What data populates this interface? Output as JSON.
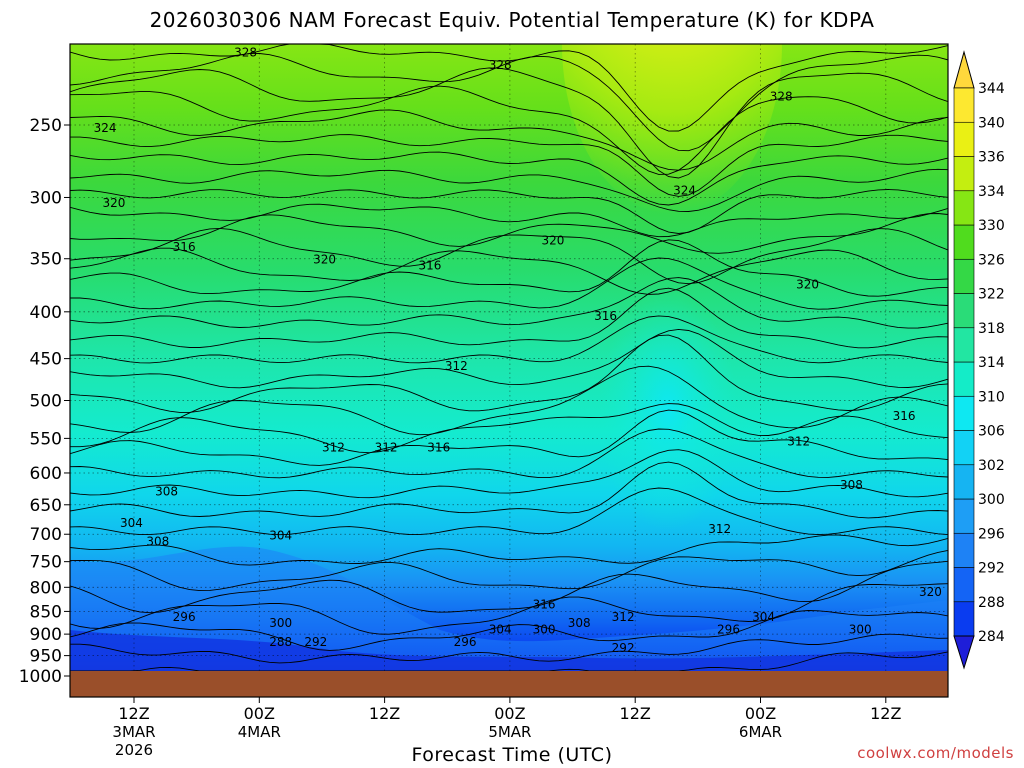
{
  "chart_data": {
    "type": "heatmap",
    "title": "2026030306 NAM Forecast Equiv. Potential Temperature (K) for KDPA",
    "xlabel": "Forecast Time (UTC)",
    "ylabel": "",
    "y_scale": "log-pressure",
    "y_ticks": [
      250,
      300,
      350,
      400,
      450,
      500,
      550,
      600,
      650,
      700,
      750,
      800,
      850,
      900,
      950,
      1000
    ],
    "x_ticks": [
      {
        "label": "12Z",
        "sub": [
          "3MAR",
          "2026"
        ]
      },
      {
        "label": "00Z",
        "sub": [
          "4MAR"
        ]
      },
      {
        "label": "12Z",
        "sub": []
      },
      {
        "label": "00Z",
        "sub": [
          "5MAR"
        ]
      },
      {
        "label": "12Z",
        "sub": []
      },
      {
        "label": "00Z",
        "sub": [
          "6MAR"
        ]
      },
      {
        "label": "12Z",
        "sub": []
      }
    ],
    "colorbar": {
      "levels": [
        284,
        288,
        292,
        296,
        300,
        302,
        306,
        310,
        314,
        318,
        322,
        326,
        330,
        334,
        336,
        340,
        344
      ],
      "colors": [
        "#1e1ed8",
        "#0a3cf0",
        "#1464f5",
        "#1e82f5",
        "#1e9ef5",
        "#16b4f2",
        "#12d2f5",
        "#0ee8f2",
        "#14ecc8",
        "#22e6a2",
        "#2adc78",
        "#34d846",
        "#50dc1e",
        "#86e614",
        "#c4ee10",
        "#eaf014",
        "#fde830",
        "#ffd83c"
      ]
    },
    "contour_labels": [
      {
        "text": "328",
        "x": 0.2,
        "y": 0.02
      },
      {
        "text": "328",
        "x": 0.49,
        "y": 0.04
      },
      {
        "text": "328",
        "x": 0.81,
        "y": 0.09
      },
      {
        "text": "324",
        "x": 0.04,
        "y": 0.14
      },
      {
        "text": "324",
        "x": 0.7,
        "y": 0.24
      },
      {
        "text": "320",
        "x": 0.05,
        "y": 0.26
      },
      {
        "text": "320",
        "x": 0.55,
        "y": 0.32
      },
      {
        "text": "320",
        "x": 0.29,
        "y": 0.35
      },
      {
        "text": "320",
        "x": 0.84,
        "y": 0.39
      },
      {
        "text": "316",
        "x": 0.13,
        "y": 0.33
      },
      {
        "text": "316",
        "x": 0.41,
        "y": 0.36
      },
      {
        "text": "316",
        "x": 0.61,
        "y": 0.44
      },
      {
        "text": "316",
        "x": 0.42,
        "y": 0.65
      },
      {
        "text": "316",
        "x": 0.95,
        "y": 0.6
      },
      {
        "text": "312",
        "x": 0.44,
        "y": 0.52
      },
      {
        "text": "312",
        "x": 0.3,
        "y": 0.65
      },
      {
        "text": "312",
        "x": 0.36,
        "y": 0.65
      },
      {
        "text": "312",
        "x": 0.83,
        "y": 0.64
      },
      {
        "text": "312",
        "x": 0.74,
        "y": 0.78
      },
      {
        "text": "312",
        "x": 0.63,
        "y": 0.92
      },
      {
        "text": "316",
        "x": 0.54,
        "y": 0.9
      },
      {
        "text": "308",
        "x": 0.11,
        "y": 0.72
      },
      {
        "text": "308",
        "x": 0.1,
        "y": 0.8
      },
      {
        "text": "308",
        "x": 0.89,
        "y": 0.71
      },
      {
        "text": "308",
        "x": 0.58,
        "y": 0.93
      },
      {
        "text": "304",
        "x": 0.07,
        "y": 0.77
      },
      {
        "text": "304",
        "x": 0.24,
        "y": 0.79
      },
      {
        "text": "304",
        "x": 0.49,
        "y": 0.94
      },
      {
        "text": "304",
        "x": 0.79,
        "y": 0.92
      },
      {
        "text": "300",
        "x": 0.24,
        "y": 0.93
      },
      {
        "text": "300",
        "x": 0.54,
        "y": 0.94
      },
      {
        "text": "300",
        "x": 0.9,
        "y": 0.94
      },
      {
        "text": "296",
        "x": 0.13,
        "y": 0.92
      },
      {
        "text": "296",
        "x": 0.45,
        "y": 0.96
      },
      {
        "text": "296",
        "x": 0.75,
        "y": 0.94
      },
      {
        "text": "292",
        "x": 0.28,
        "y": 0.96
      },
      {
        "text": "292",
        "x": 0.63,
        "y": 0.97
      },
      {
        "text": "288",
        "x": 0.24,
        "y": 0.96
      },
      {
        "text": "320",
        "x": 0.98,
        "y": 0.88
      }
    ]
  },
  "footer": {
    "credit": "coolwx.com/models"
  }
}
